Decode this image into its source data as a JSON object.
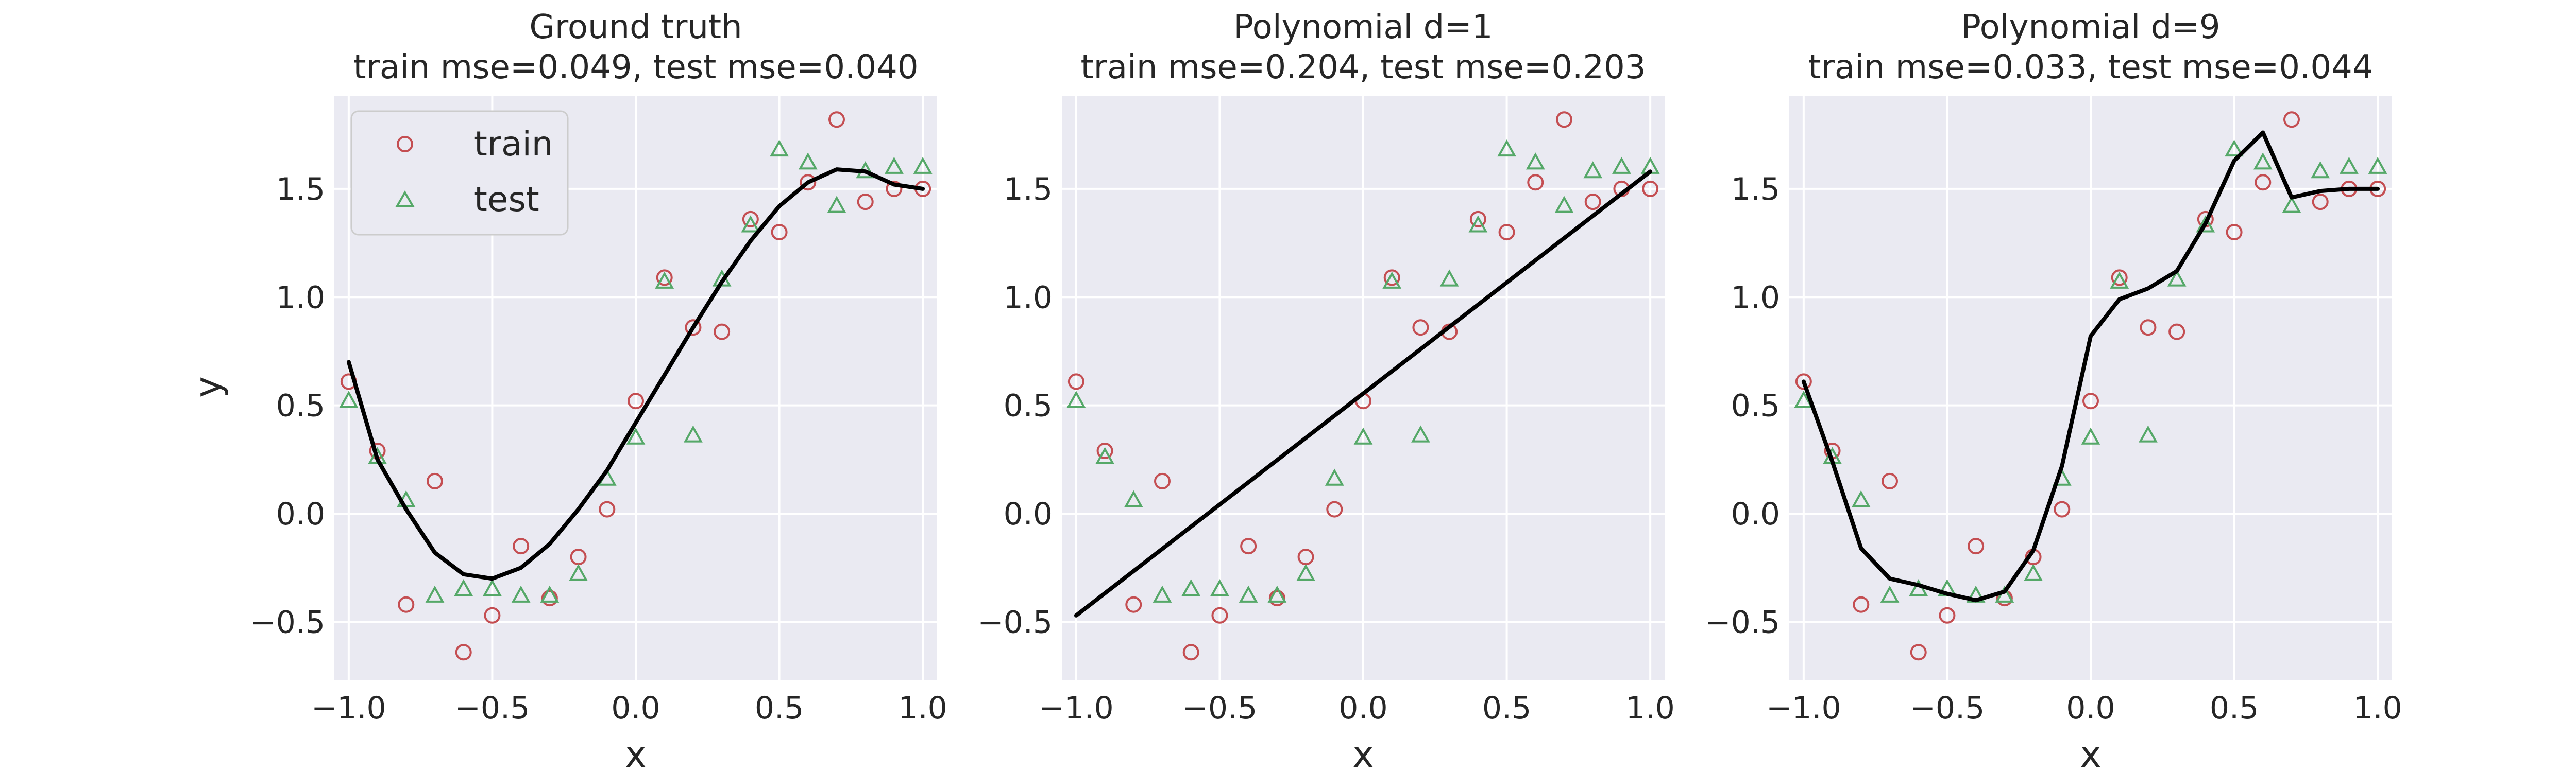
{
  "chart_data": [
    {
      "type": "scatter",
      "title": "Ground truth",
      "subtitle": "train mse=0.049, test mse=0.040",
      "xlabel": "x",
      "ylabel": "y",
      "xlim": [
        -1.05,
        1.05
      ],
      "ylim": [
        -0.77,
        1.93
      ],
      "xticks": [
        "−1.0",
        "−0.5",
        "0.0",
        "0.5",
        "1.0"
      ],
      "yticks": [
        "−0.5",
        "0.0",
        "0.5",
        "1.0",
        "1.5"
      ],
      "grid": true,
      "legend": {
        "placement": "upper-left",
        "entries": [
          "train",
          "test"
        ]
      },
      "series": [
        {
          "name": "train",
          "marker": "circle",
          "color": "#c44e52",
          "x": [
            -1.0,
            -0.9,
            -0.8,
            -0.7,
            -0.6,
            -0.5,
            -0.4,
            -0.3,
            -0.2,
            -0.1,
            0.0,
            0.1,
            0.2,
            0.3,
            0.4,
            0.5,
            0.6,
            0.7,
            0.8,
            0.9,
            1.0
          ],
          "y": [
            0.61,
            0.29,
            -0.42,
            0.15,
            -0.64,
            -0.47,
            -0.15,
            -0.39,
            -0.2,
            0.02,
            0.52,
            1.09,
            0.86,
            0.84,
            1.36,
            1.3,
            1.53,
            1.82,
            1.44,
            1.5,
            1.5
          ]
        },
        {
          "name": "test",
          "marker": "triangle",
          "color": "#55a868",
          "x": [
            -1.0,
            -0.9,
            -0.8,
            -0.7,
            -0.6,
            -0.5,
            -0.4,
            -0.3,
            -0.2,
            -0.1,
            0.0,
            0.1,
            0.2,
            0.3,
            0.4,
            0.5,
            0.6,
            0.7,
            0.8,
            0.9,
            1.0
          ],
          "y": [
            0.52,
            0.26,
            0.06,
            -0.38,
            -0.35,
            -0.35,
            -0.38,
            -0.38,
            -0.28,
            0.16,
            0.35,
            1.07,
            0.36,
            1.08,
            1.33,
            1.68,
            1.62,
            1.42,
            1.58,
            1.6,
            1.6
          ]
        },
        {
          "name": "",
          "marker": "line",
          "color": "#000000",
          "x": [
            -1.0,
            -0.9,
            -0.8,
            -0.7,
            -0.6,
            -0.5,
            -0.4,
            -0.3,
            -0.2,
            -0.1,
            0.0,
            0.1,
            0.2,
            0.3,
            0.4,
            0.5,
            0.6,
            0.7,
            0.8,
            0.9,
            1.0
          ],
          "y": [
            0.7,
            0.25,
            0.02,
            -0.18,
            -0.28,
            -0.3,
            -0.25,
            -0.14,
            0.02,
            0.2,
            0.42,
            0.64,
            0.86,
            1.07,
            1.26,
            1.42,
            1.53,
            1.59,
            1.58,
            1.52,
            1.5
          ]
        }
      ]
    },
    {
      "type": "scatter",
      "title": "Polynomial d=1",
      "subtitle": "train mse=0.204, test mse=0.203",
      "xlabel": "x",
      "ylabel": "",
      "xlim": [
        -1.05,
        1.05
      ],
      "ylim": [
        -0.77,
        1.93
      ],
      "xticks": [
        "−1.0",
        "−0.5",
        "0.0",
        "0.5",
        "1.0"
      ],
      "yticks": [
        "−0.5",
        "0.0",
        "0.5",
        "1.0",
        "1.5"
      ],
      "grid": true,
      "series": [
        {
          "name": "train",
          "marker": "circle",
          "color": "#c44e52",
          "x": [
            -1.0,
            -0.9,
            -0.8,
            -0.7,
            -0.6,
            -0.5,
            -0.4,
            -0.3,
            -0.2,
            -0.1,
            0.0,
            0.1,
            0.2,
            0.3,
            0.4,
            0.5,
            0.6,
            0.7,
            0.8,
            0.9,
            1.0
          ],
          "y": [
            0.61,
            0.29,
            -0.42,
            0.15,
            -0.64,
            -0.47,
            -0.15,
            -0.39,
            -0.2,
            0.02,
            0.52,
            1.09,
            0.86,
            0.84,
            1.36,
            1.3,
            1.53,
            1.82,
            1.44,
            1.5,
            1.5
          ]
        },
        {
          "name": "test",
          "marker": "triangle",
          "color": "#55a868",
          "x": [
            -1.0,
            -0.9,
            -0.8,
            -0.7,
            -0.6,
            -0.5,
            -0.4,
            -0.3,
            -0.2,
            -0.1,
            0.0,
            0.1,
            0.2,
            0.3,
            0.4,
            0.5,
            0.6,
            0.7,
            0.8,
            0.9,
            1.0
          ],
          "y": [
            0.52,
            0.26,
            0.06,
            -0.38,
            -0.35,
            -0.35,
            -0.38,
            -0.38,
            -0.28,
            0.16,
            0.35,
            1.07,
            0.36,
            1.08,
            1.33,
            1.68,
            1.62,
            1.42,
            1.58,
            1.6,
            1.6
          ]
        },
        {
          "name": "",
          "marker": "line",
          "color": "#000000",
          "x": [
            -1.0,
            1.0
          ],
          "y": [
            -0.47,
            1.58
          ]
        }
      ]
    },
    {
      "type": "scatter",
      "title": "Polynomial d=9",
      "subtitle": "train mse=0.033, test mse=0.044",
      "xlabel": "x",
      "ylabel": "",
      "xlim": [
        -1.05,
        1.05
      ],
      "ylim": [
        -0.77,
        1.93
      ],
      "xticks": [
        "−1.0",
        "−0.5",
        "0.0",
        "0.5",
        "1.0"
      ],
      "yticks": [
        "−0.5",
        "0.0",
        "0.5",
        "1.0",
        "1.5"
      ],
      "grid": true,
      "series": [
        {
          "name": "train",
          "marker": "circle",
          "color": "#c44e52",
          "x": [
            -1.0,
            -0.9,
            -0.8,
            -0.7,
            -0.6,
            -0.5,
            -0.4,
            -0.3,
            -0.2,
            -0.1,
            0.0,
            0.1,
            0.2,
            0.3,
            0.4,
            0.5,
            0.6,
            0.7,
            0.8,
            0.9,
            1.0
          ],
          "y": [
            0.61,
            0.29,
            -0.42,
            0.15,
            -0.64,
            -0.47,
            -0.15,
            -0.39,
            -0.2,
            0.02,
            0.52,
            1.09,
            0.86,
            0.84,
            1.36,
            1.3,
            1.53,
            1.82,
            1.44,
            1.5,
            1.5
          ]
        },
        {
          "name": "test",
          "marker": "triangle",
          "color": "#55a868",
          "x": [
            -1.0,
            -0.9,
            -0.8,
            -0.7,
            -0.6,
            -0.5,
            -0.4,
            -0.3,
            -0.2,
            -0.1,
            0.0,
            0.1,
            0.2,
            0.3,
            0.4,
            0.5,
            0.6,
            0.7,
            0.8,
            0.9,
            1.0
          ],
          "y": [
            0.52,
            0.26,
            0.06,
            -0.38,
            -0.35,
            -0.35,
            -0.38,
            -0.38,
            -0.28,
            0.16,
            0.35,
            1.07,
            0.36,
            1.08,
            1.33,
            1.68,
            1.62,
            1.42,
            1.58,
            1.6,
            1.6
          ]
        },
        {
          "name": "",
          "marker": "line",
          "color": "#000000",
          "x": [
            -1.0,
            -0.9,
            -0.8,
            -0.7,
            -0.6,
            -0.5,
            -0.4,
            -0.3,
            -0.2,
            -0.1,
            0.0,
            0.1,
            0.2,
            0.3,
            0.4,
            0.5,
            0.6,
            0.7,
            0.8,
            0.9,
            1.0
          ],
          "y": [
            0.61,
            0.24,
            -0.16,
            -0.3,
            -0.33,
            -0.37,
            -0.4,
            -0.36,
            -0.17,
            0.22,
            0.82,
            0.99,
            1.04,
            1.12,
            1.34,
            1.63,
            1.76,
            1.46,
            1.49,
            1.5,
            1.5
          ]
        }
      ]
    }
  ]
}
